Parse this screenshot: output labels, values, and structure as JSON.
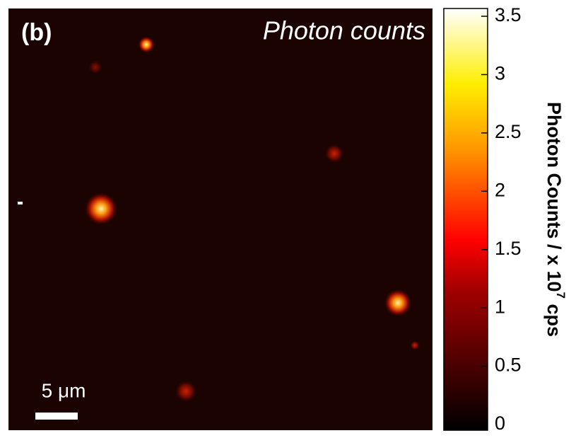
{
  "chart_data": {
    "type": "image",
    "panel_label": "(b)",
    "title": "Photon counts",
    "scale_bar_label": "5 μm",
    "colorbar": {
      "label": {
        "text": "Photon Counts / x 10",
        "exponent": "7",
        "unit": "cps"
      },
      "clim": [
        0,
        3.5
      ],
      "ticks": [
        0,
        0.5,
        1,
        1.5,
        2,
        2.5,
        3,
        3.5
      ]
    }
  }
}
